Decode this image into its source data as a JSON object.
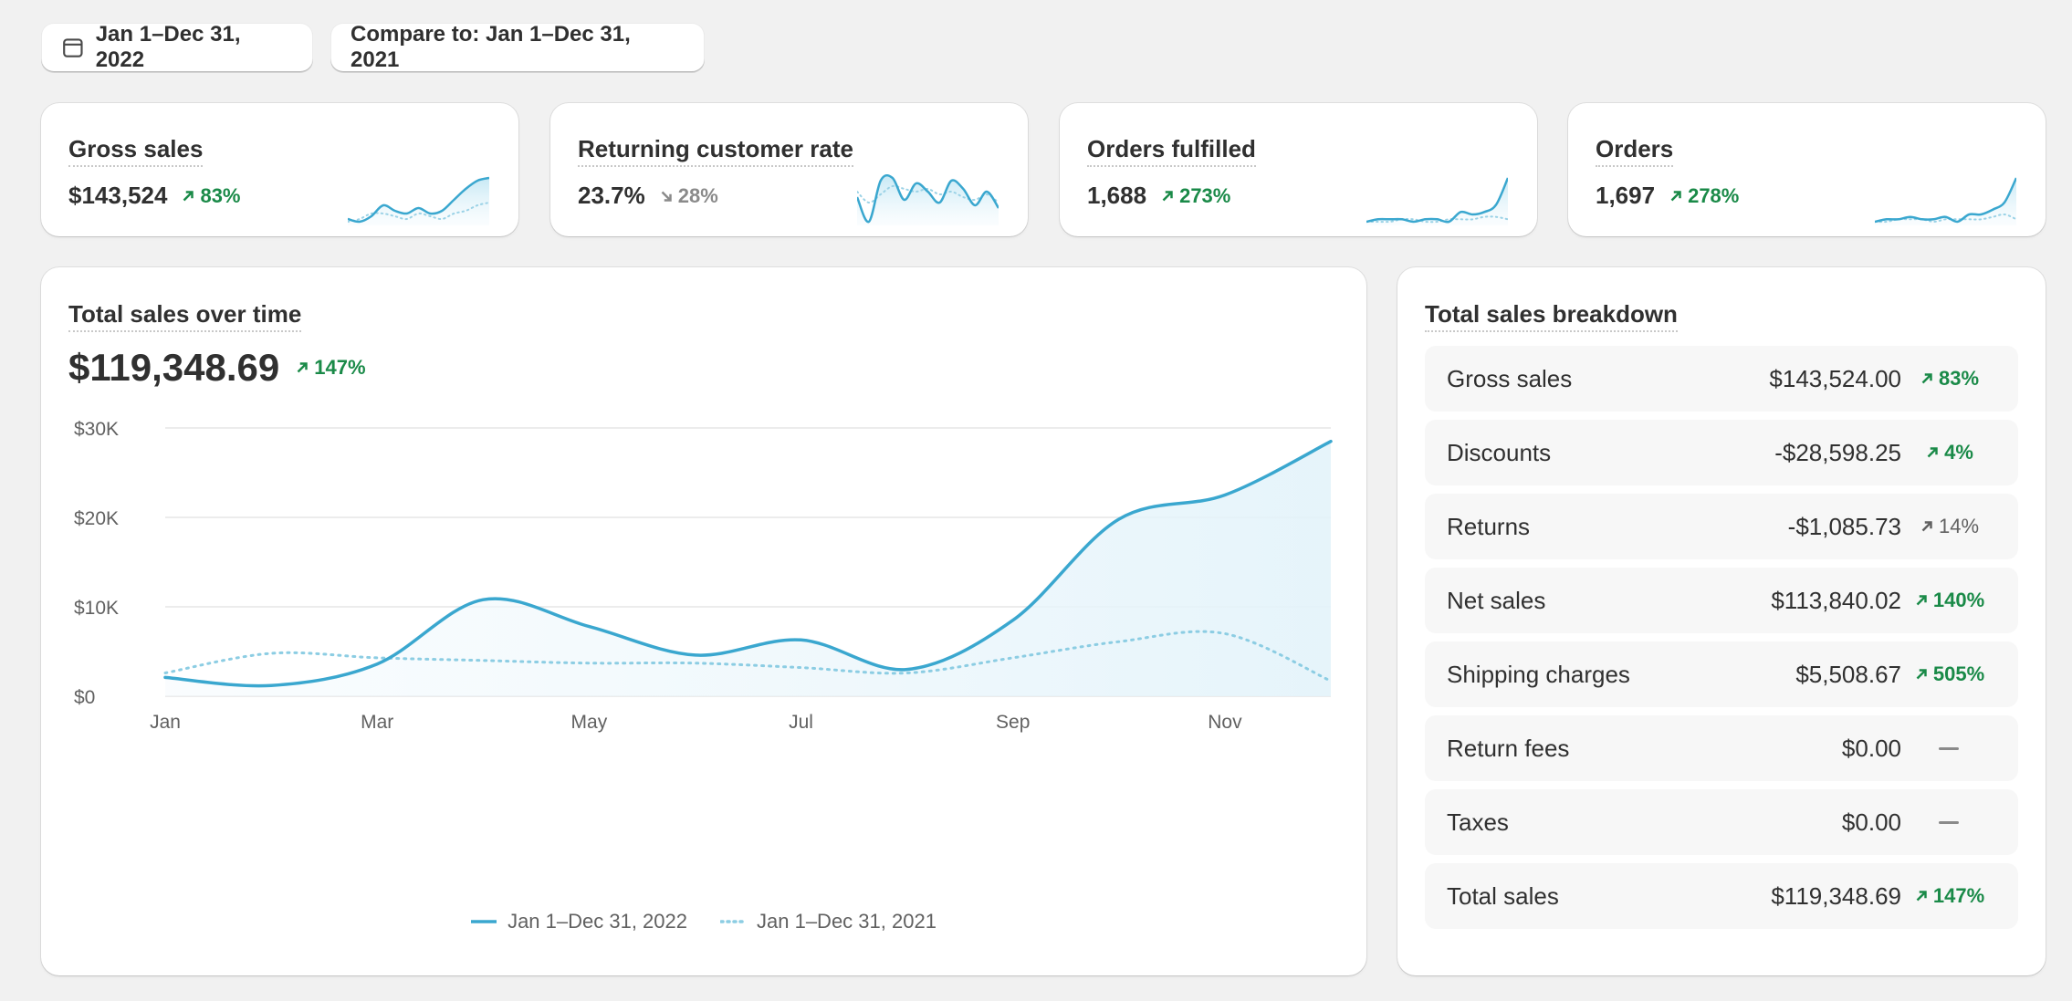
{
  "date_range": {
    "label": "Jan 1–Dec 31, 2022"
  },
  "compare": {
    "label": "Compare to: Jan 1–Dec 31, 2021"
  },
  "colors": {
    "accent": "#44aed3",
    "positive": "#1a8a48",
    "neutral": "#8a8a8a"
  },
  "kpis": [
    {
      "title": "Gross sales",
      "value": "$143,524",
      "delta": "83%",
      "direction": "up",
      "current": [
        3,
        2,
        4,
        8,
        6,
        5,
        7,
        5,
        6,
        10,
        14,
        17,
        18
      ],
      "previous": [
        2,
        3,
        5,
        5,
        4,
        3,
        5,
        4,
        3,
        5,
        6,
        8,
        9
      ]
    },
    {
      "title": "Returning customer rate",
      "value": "23.7%",
      "delta": "28%",
      "direction": "down",
      "current": [
        12,
        3,
        18,
        19,
        11,
        17,
        14,
        10,
        18,
        15,
        9,
        14,
        8
      ],
      "previous": [
        14,
        10,
        13,
        16,
        15,
        14,
        15,
        13,
        14,
        12,
        11,
        13,
        10
      ]
    },
    {
      "title": "Orders fulfilled",
      "value": "1,688",
      "delta": "273%",
      "direction": "up",
      "current": [
        2,
        3,
        3,
        3,
        2,
        3,
        3,
        2,
        6,
        5,
        6,
        9,
        20
      ],
      "previous": [
        2,
        2,
        2,
        3,
        3,
        2,
        2,
        3,
        3,
        3,
        4,
        4,
        3
      ]
    },
    {
      "title": "Orders",
      "value": "1,697",
      "delta": "278%",
      "direction": "up",
      "current": [
        2,
        3,
        3,
        4,
        3,
        3,
        4,
        2,
        5,
        5,
        7,
        10,
        20
      ],
      "previous": [
        2,
        2,
        3,
        3,
        3,
        2,
        3,
        3,
        3,
        3,
        4,
        5,
        3
      ]
    }
  ],
  "sales_over_time": {
    "title": "Total sales over time",
    "value": "$119,348.69",
    "delta": "147%"
  },
  "chart_data": {
    "type": "line",
    "x": [
      "Jan",
      "Feb",
      "Mar",
      "Apr",
      "May",
      "Jun",
      "Jul",
      "Aug",
      "Sep",
      "Oct",
      "Nov",
      "Dec"
    ],
    "x_tick_labels": [
      "Jan",
      "Mar",
      "May",
      "Jul",
      "Sep",
      "Nov"
    ],
    "y_tick_labels": [
      "$0",
      "$10K",
      "$20K",
      "$30K"
    ],
    "y_ticks": [
      0,
      10000,
      20000,
      30000
    ],
    "ylim": [
      0,
      30000
    ],
    "grid": true,
    "legend_position": "bottom",
    "series": [
      {
        "name": "Jan 1–Dec 31, 2022",
        "style": "solid",
        "values": [
          2100,
          1200,
          3600,
          10800,
          7800,
          4600,
          6300,
          3000,
          8500,
          19800,
          22500,
          28500
        ]
      },
      {
        "name": "Jan 1–Dec 31, 2021",
        "style": "dotted",
        "values": [
          2600,
          4800,
          4300,
          4000,
          3700,
          3700,
          3200,
          2600,
          4300,
          6100,
          7000,
          1700
        ]
      }
    ]
  },
  "breakdown": {
    "title": "Total sales breakdown",
    "rows": [
      {
        "label": "Gross sales",
        "value": "$143,524.00",
        "delta": "83%",
        "direction": "up"
      },
      {
        "label": "Discounts",
        "value": "-$28,598.25",
        "delta": "4%",
        "direction": "up"
      },
      {
        "label": "Returns",
        "value": "-$1,085.73",
        "delta": "14%",
        "direction": "neutral"
      },
      {
        "label": "Net sales",
        "value": "$113,840.02",
        "delta": "140%",
        "direction": "up"
      },
      {
        "label": "Shipping charges",
        "value": "$5,508.67",
        "delta": "505%",
        "direction": "up"
      },
      {
        "label": "Return fees",
        "value": "$0.00",
        "delta": "",
        "direction": "none"
      },
      {
        "label": "Taxes",
        "value": "$0.00",
        "delta": "",
        "direction": "none"
      },
      {
        "label": "Total sales",
        "value": "$119,348.69",
        "delta": "147%",
        "direction": "up"
      }
    ]
  }
}
